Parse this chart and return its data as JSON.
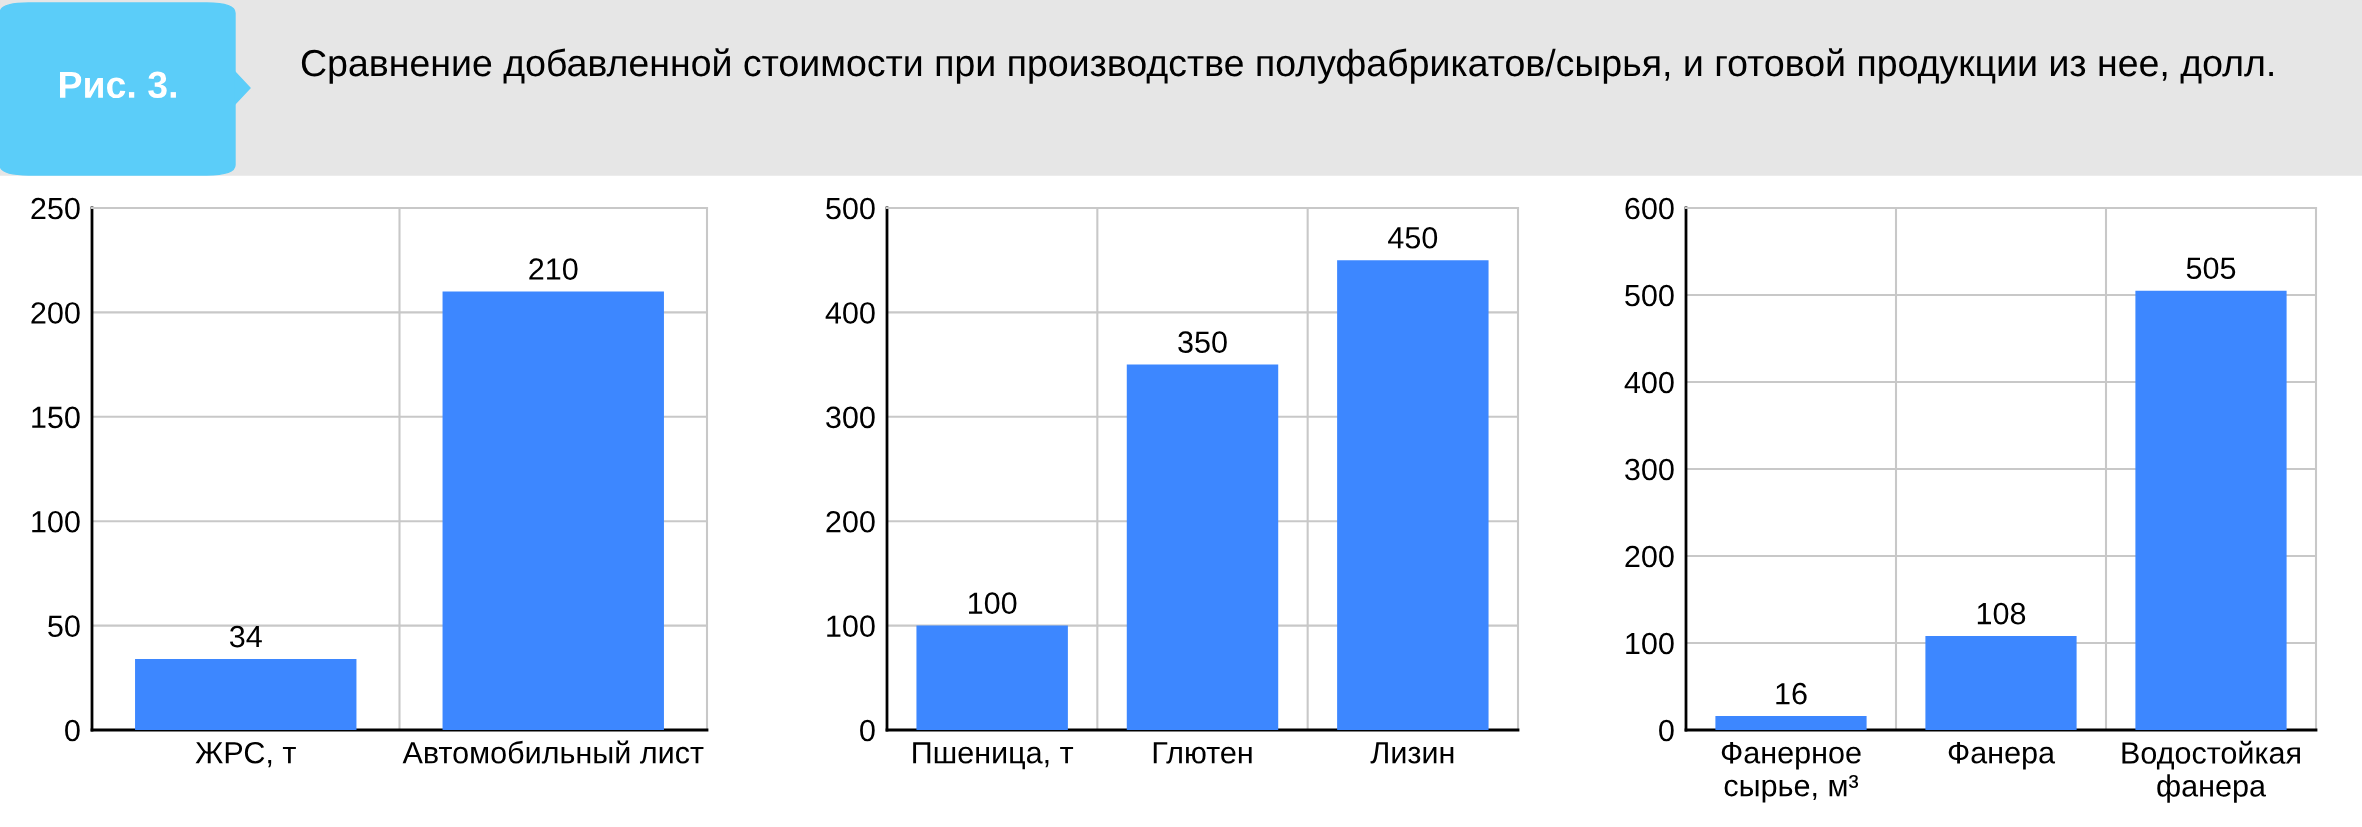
{
  "chart_data": [
    {
      "type": "bar",
      "title": "Сравнение добавленной стоимости при производстве полуфабрикатов/сырья, и готовой продукции из нее, долл.",
      "annotations": [
        "Рис. 3."
      ],
      "categories": [
        "ЖРС, т",
        "Автомобильный лист"
      ],
      "values": [
        34,
        210
      ],
      "color": "#3d87ff",
      "ylim": [
        0,
        250
      ],
      "yticks": [
        0,
        50,
        100,
        150,
        200,
        250
      ],
      "grid": true,
      "data_labels": true
    },
    {
      "type": "bar",
      "categories": [
        "Пшеница, т",
        "Глютен",
        "Лизин"
      ],
      "values": [
        100,
        350,
        450
      ],
      "color": "#3d87ff",
      "ylim": [
        0,
        500
      ],
      "yticks": [
        0,
        100,
        200,
        300,
        400,
        500
      ],
      "grid": true,
      "data_labels": true
    },
    {
      "type": "bar",
      "categories": [
        "Фанерное\nсырье, м³",
        "Фанера",
        "Водостойкая\nфанера"
      ],
      "values": [
        16,
        108,
        505
      ],
      "color": "#3d87ff",
      "ylim": [
        0,
        600
      ],
      "yticks": [
        0,
        100,
        200,
        300,
        400,
        500,
        600
      ],
      "grid": true,
      "data_labels": true
    }
  ]
}
